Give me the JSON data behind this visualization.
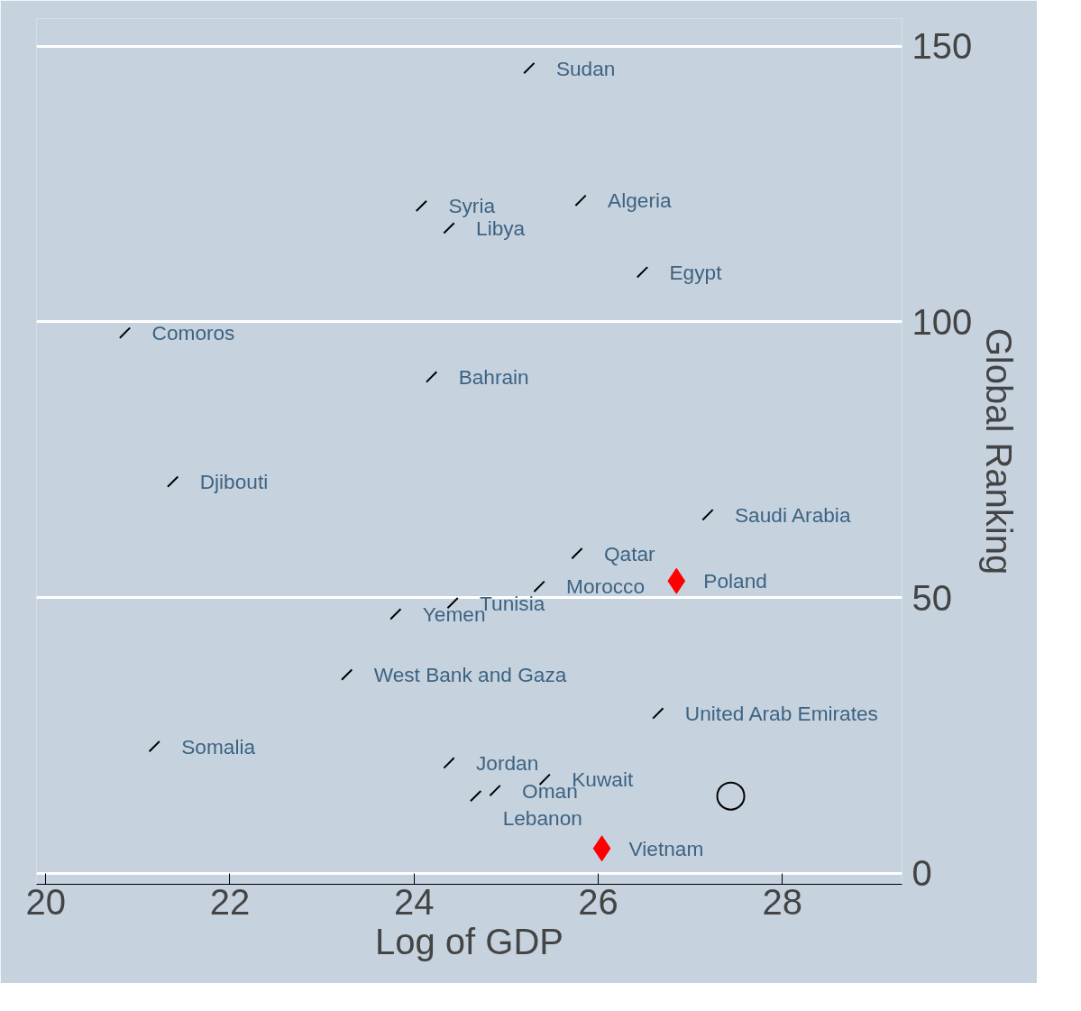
{
  "chart_data": {
    "type": "scatter",
    "xlabel": "Log of GDP",
    "ylabel": "Global Ranking",
    "xlim": [
      19.9,
      29.3
    ],
    "ylim": [
      -2,
      155
    ],
    "xticks": [
      20,
      22,
      24,
      26,
      28
    ],
    "yticks": [
      0,
      50,
      100,
      150
    ],
    "grid": "y",
    "series": [
      {
        "color": "#000000",
        "marker": "cross",
        "x": [
          25.25,
          24.08,
          25.81,
          24.38,
          26.48,
          20.86,
          24.19,
          21.38,
          27.19,
          25.77,
          25.36,
          24.42,
          23.8,
          23.27,
          26.65,
          21.18,
          24.38,
          25.42,
          24.88,
          24.67
        ],
        "values": [
          146,
          121,
          122,
          117,
          109,
          98,
          90,
          71,
          65,
          58,
          52,
          49,
          47,
          36,
          29,
          23,
          20,
          17,
          15,
          14
        ]
      },
      {
        "color": "#ff0000",
        "marker": "diamond",
        "x": [
          26.85,
          26.04
        ],
        "values": [
          53,
          4.5
        ]
      },
      {
        "color": "#000000",
        "marker": "circle_open",
        "x": [
          27.44
        ],
        "values": [
          14
        ]
      }
    ],
    "annotations": [
      {
        "text": "Sudan",
        "x": 25.25,
        "y": 146
      },
      {
        "text": "Syria",
        "x": 24.08,
        "y": 121
      },
      {
        "text": "Algeria",
        "x": 25.81,
        "y": 122
      },
      {
        "text": "Libya",
        "x": 24.38,
        "y": 117
      },
      {
        "text": "Egypt",
        "x": 26.48,
        "y": 109
      },
      {
        "text": "Comoros",
        "x": 20.86,
        "y": 98
      },
      {
        "text": "Bahrain",
        "x": 24.19,
        "y": 90
      },
      {
        "text": "Djibouti",
        "x": 21.38,
        "y": 71
      },
      {
        "text": "Saudi Arabia",
        "x": 27.19,
        "y": 65
      },
      {
        "text": "Qatar",
        "x": 25.77,
        "y": 58
      },
      {
        "text": "Poland",
        "x": 26.85,
        "y": 53
      },
      {
        "text": "Morocco",
        "x": 25.36,
        "y": 52
      },
      {
        "text": "Tunisia",
        "x": 24.42,
        "y": 49
      },
      {
        "text": "Yemen",
        "x": 23.8,
        "y": 47
      },
      {
        "text": "West Bank and Gaza",
        "x": 23.27,
        "y": 36
      },
      {
        "text": "United Arab Emirates",
        "x": 26.65,
        "y": 29
      },
      {
        "text": "Somalia",
        "x": 21.18,
        "y": 23
      },
      {
        "text": "Jordan",
        "x": 24.38,
        "y": 20
      },
      {
        "text": "Kuwait",
        "x": 25.42,
        "y": 17
      },
      {
        "text": "Oman",
        "x": 24.88,
        "y": 15
      },
      {
        "text": "Lebanon",
        "x": 24.67,
        "y": 14
      },
      {
        "text": "Vietnam",
        "x": 26.04,
        "y": 4.5
      }
    ]
  }
}
